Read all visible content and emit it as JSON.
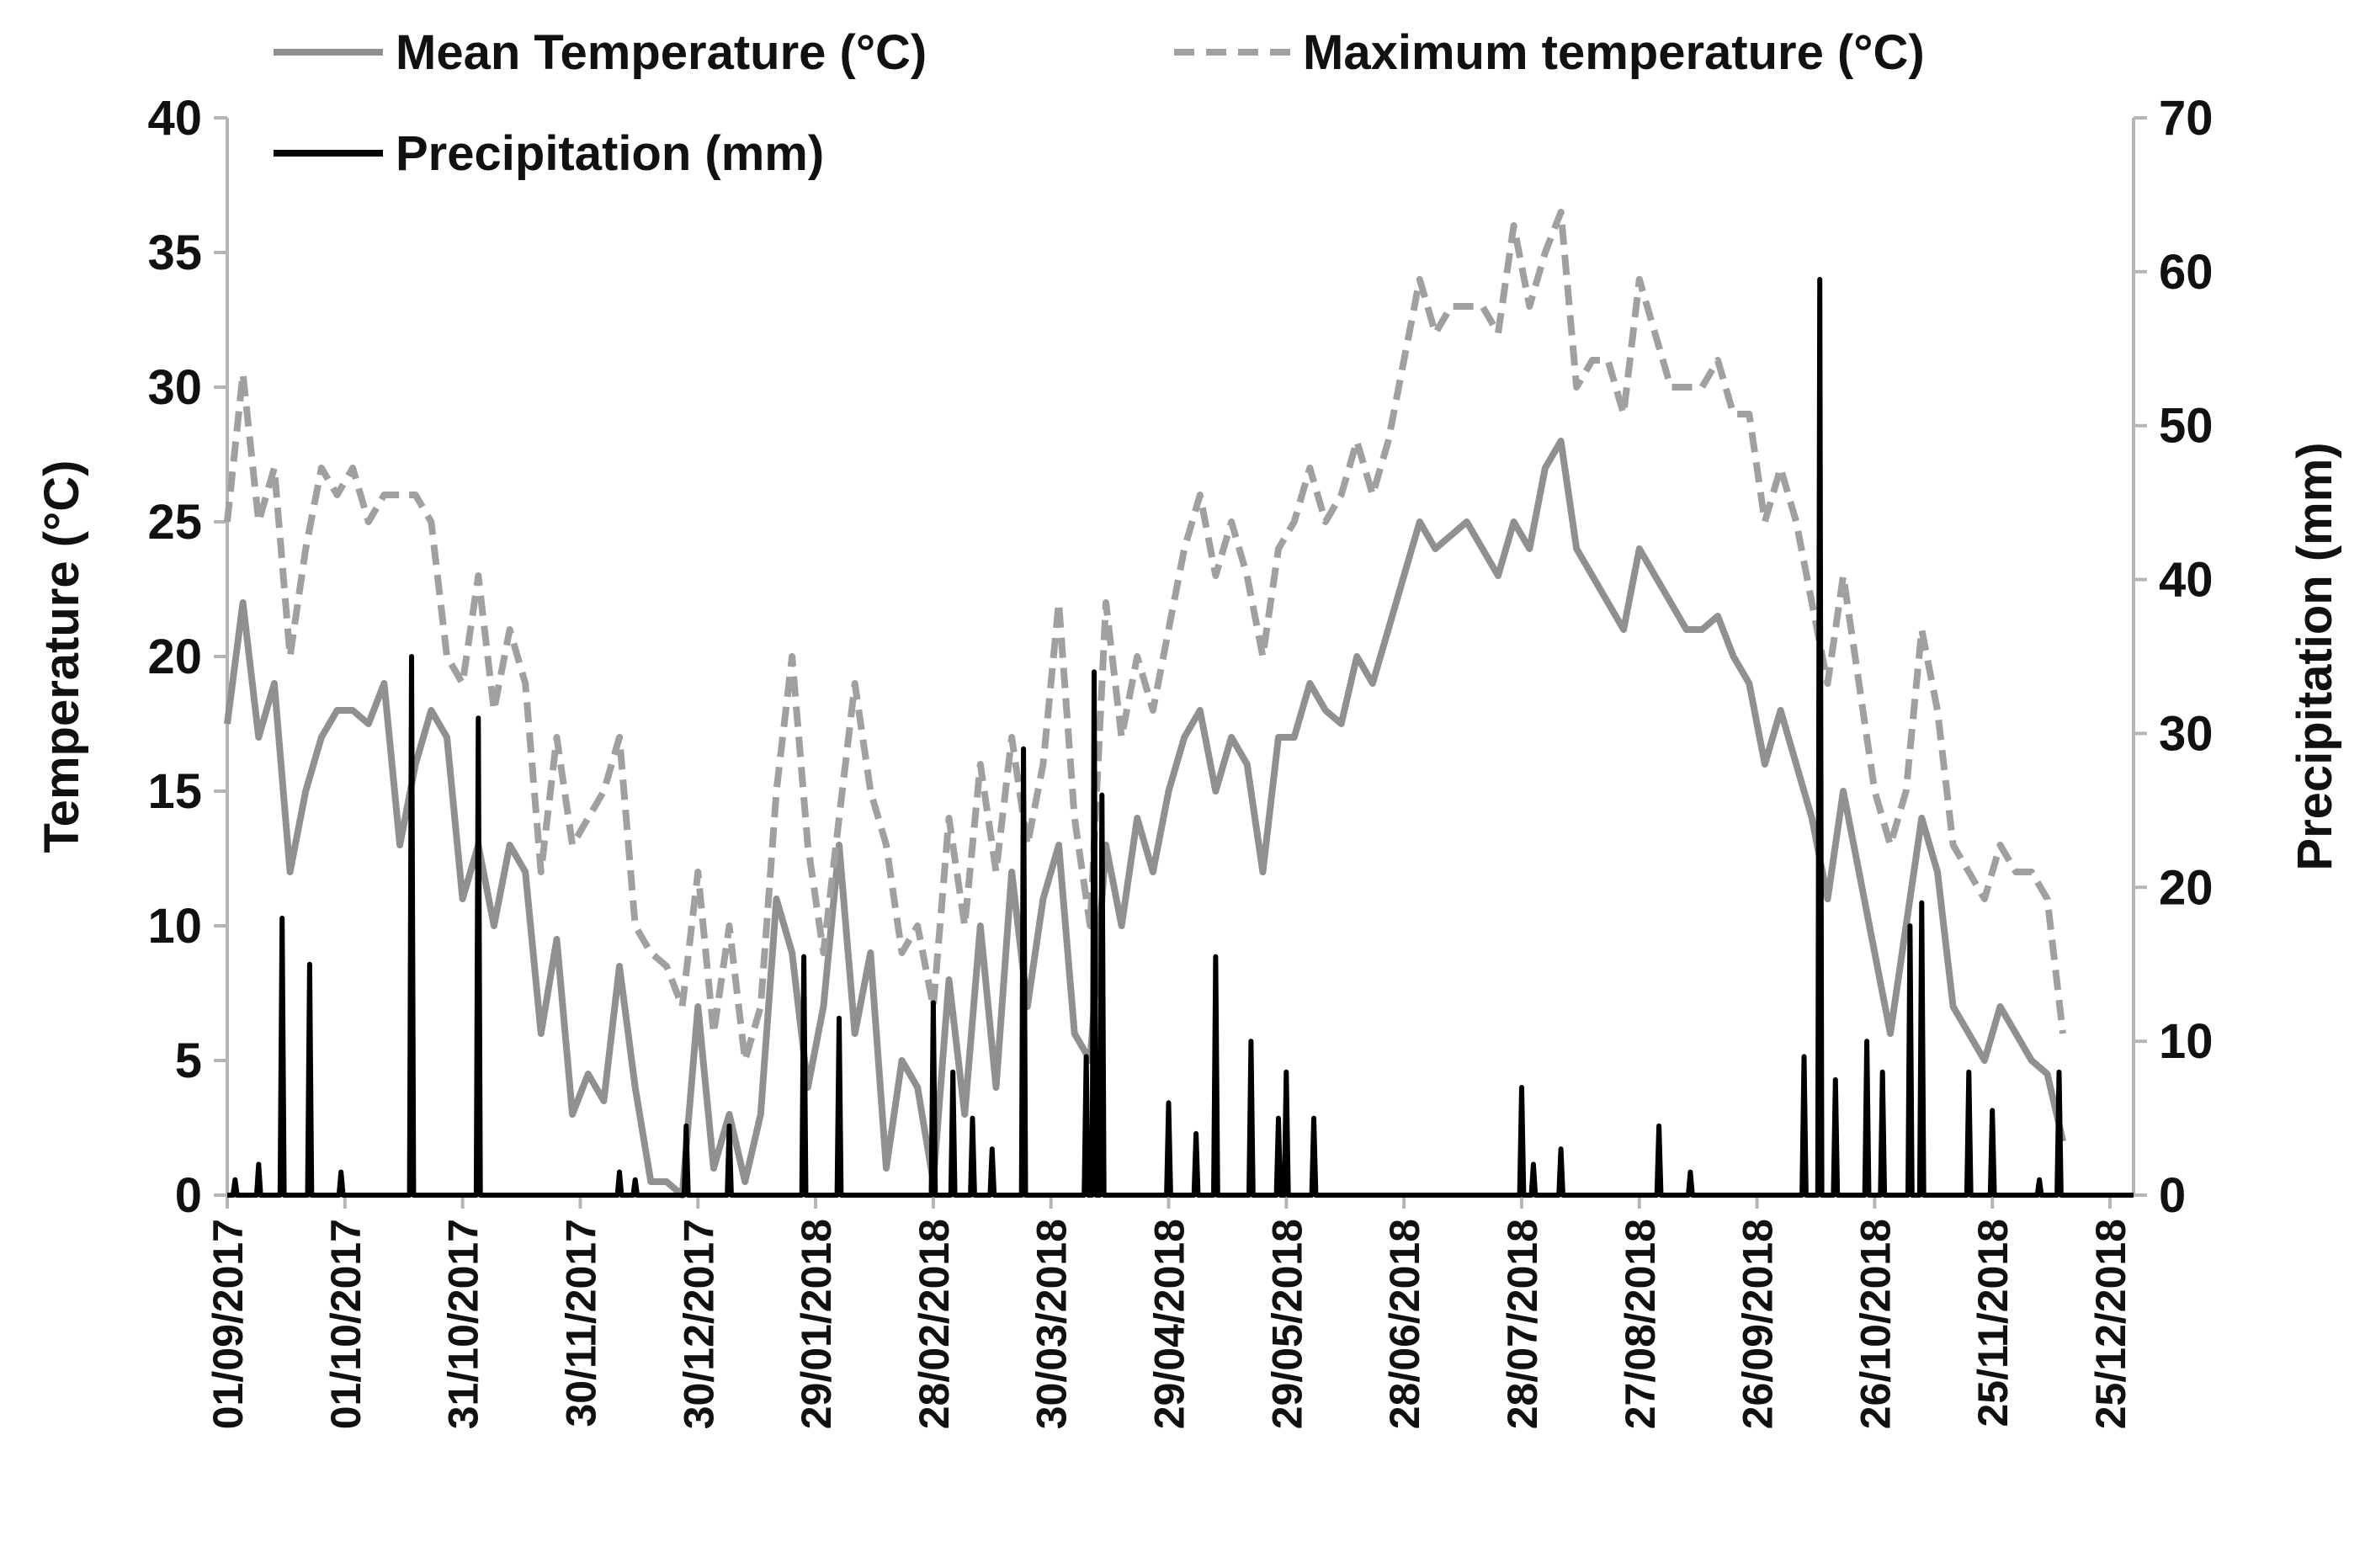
{
  "chart_data": {
    "type": "line",
    "title": "",
    "xlabel": "",
    "ylabel_left": "Temperature (°C)",
    "ylabel_right": "Precipitation (mm)",
    "ylim_left": [
      0,
      40
    ],
    "ylim_right": [
      0,
      70
    ],
    "yticks_left": [
      "0",
      "5",
      "10",
      "15",
      "20",
      "25",
      "30",
      "35",
      "40"
    ],
    "yticks_right": [
      "0",
      "10",
      "20",
      "30",
      "40",
      "50",
      "60",
      "70"
    ],
    "x_start": "01/09/2017",
    "x_end": "31/12/2018",
    "x_tick_labels": [
      "01/09/2017",
      "01/10/2017",
      "31/10/2017",
      "30/11/2017",
      "30/12/2017",
      "29/01/2018",
      "28/02/2018",
      "30/03/2018",
      "29/04/2018",
      "29/05/2018",
      "28/06/2018",
      "28/07/2018",
      "27/08/2018",
      "26/09/2018",
      "26/10/2018",
      "25/11/2018",
      "25/12/2018"
    ],
    "x_tick_days": [
      0,
      30,
      60,
      90,
      120,
      150,
      180,
      210,
      240,
      270,
      300,
      330,
      360,
      390,
      420,
      450,
      480
    ],
    "grid": false,
    "legend_position": "top",
    "series": [
      {
        "name": "Mean Temperature (°C)",
        "axis": "left",
        "color": "#909090",
        "style": "solid",
        "day_step": 4,
        "values": [
          17.5,
          22,
          17,
          19,
          12,
          15,
          17,
          18,
          18,
          17.5,
          19,
          13,
          16,
          18,
          17,
          11,
          13,
          10,
          13,
          12,
          6,
          9.5,
          3,
          4.5,
          3.5,
          8.5,
          4,
          0.5,
          0.5,
          0,
          7,
          1,
          3,
          0.5,
          3,
          11,
          9,
          4,
          7,
          13,
          6,
          9,
          1,
          5,
          4,
          0.5,
          8,
          3,
          10,
          4,
          12,
          7,
          11,
          13,
          6,
          5,
          13,
          10,
          14,
          12,
          15,
          17,
          18,
          15,
          17,
          16,
          12,
          17,
          17,
          19,
          18,
          17.5,
          20,
          19,
          21,
          23,
          25,
          24,
          24.5,
          25,
          24,
          23,
          25,
          24,
          27,
          28,
          24,
          23,
          22,
          21,
          24,
          23,
          22,
          21,
          21,
          21.5,
          20,
          19,
          16,
          18,
          16,
          14,
          11,
          15,
          12,
          9,
          6,
          10,
          14,
          12,
          7,
          6,
          5,
          7,
          6,
          5,
          4.5,
          2
        ]
      },
      {
        "name": "Maximum temperature (°C)",
        "axis": "left",
        "color": "#a0a0a0",
        "style": "dashed",
        "day_step": 4,
        "values": [
          25,
          30.5,
          25,
          27,
          20,
          24,
          27,
          26,
          27,
          25,
          26,
          26,
          26,
          25,
          20,
          19,
          23,
          18,
          21,
          19,
          12,
          17,
          13,
          14,
          15,
          17,
          10,
          9,
          8.5,
          7,
          12,
          6,
          10,
          5,
          7,
          15,
          20,
          13,
          9,
          14,
          19,
          15,
          13,
          9,
          10,
          7,
          14,
          10,
          16,
          12,
          17,
          13,
          16,
          22,
          14,
          10,
          22,
          17,
          20,
          18,
          21,
          24,
          26,
          23,
          25,
          23,
          20,
          24,
          25,
          27,
          25,
          26,
          28,
          26,
          28,
          31,
          34,
          32,
          33,
          33,
          33,
          32,
          36,
          33,
          35,
          36.5,
          30,
          31,
          31,
          29,
          34,
          32,
          30,
          30,
          30,
          31,
          29,
          29,
          25,
          27,
          25,
          22,
          19,
          23,
          19,
          15,
          13,
          15,
          21,
          18,
          13,
          12,
          11,
          13,
          12,
          12,
          11,
          6
        ]
      },
      {
        "name": "Precipitation (mm)",
        "axis": "right",
        "color": "#000000",
        "style": "solid",
        "events": [
          {
            "day": 2,
            "value": 1
          },
          {
            "day": 8,
            "value": 2
          },
          {
            "day": 14,
            "value": 18
          },
          {
            "day": 21,
            "value": 15
          },
          {
            "day": 29,
            "value": 1.5
          },
          {
            "day": 47,
            "value": 35
          },
          {
            "day": 64,
            "value": 31
          },
          {
            "day": 100,
            "value": 1.5
          },
          {
            "day": 104,
            "value": 1
          },
          {
            "day": 117,
            "value": 4.5
          },
          {
            "day": 128,
            "value": 4.5
          },
          {
            "day": 147,
            "value": 15.5
          },
          {
            "day": 156,
            "value": 11.5
          },
          {
            "day": 180,
            "value": 12.5
          },
          {
            "day": 185,
            "value": 8
          },
          {
            "day": 190,
            "value": 5
          },
          {
            "day": 195,
            "value": 3
          },
          {
            "day": 203,
            "value": 29
          },
          {
            "day": 219,
            "value": 9
          },
          {
            "day": 221,
            "value": 34
          },
          {
            "day": 223,
            "value": 26
          },
          {
            "day": 240,
            "value": 6
          },
          {
            "day": 247,
            "value": 4
          },
          {
            "day": 252,
            "value": 15.5
          },
          {
            "day": 261,
            "value": 10
          },
          {
            "day": 268,
            "value": 5
          },
          {
            "day": 270,
            "value": 8
          },
          {
            "day": 277,
            "value": 5
          },
          {
            "day": 330,
            "value": 7
          },
          {
            "day": 333,
            "value": 2
          },
          {
            "day": 340,
            "value": 3
          },
          {
            "day": 365,
            "value": 4.5
          },
          {
            "day": 373,
            "value": 1.5
          },
          {
            "day": 402,
            "value": 9
          },
          {
            "day": 406,
            "value": 59.5
          },
          {
            "day": 410,
            "value": 7.5
          },
          {
            "day": 418,
            "value": 10
          },
          {
            "day": 422,
            "value": 8
          },
          {
            "day": 429,
            "value": 17.5
          },
          {
            "day": 432,
            "value": 19
          },
          {
            "day": 444,
            "value": 8
          },
          {
            "day": 450,
            "value": 5.5
          },
          {
            "day": 462,
            "value": 1
          },
          {
            "day": 467,
            "value": 8
          }
        ]
      }
    ]
  }
}
